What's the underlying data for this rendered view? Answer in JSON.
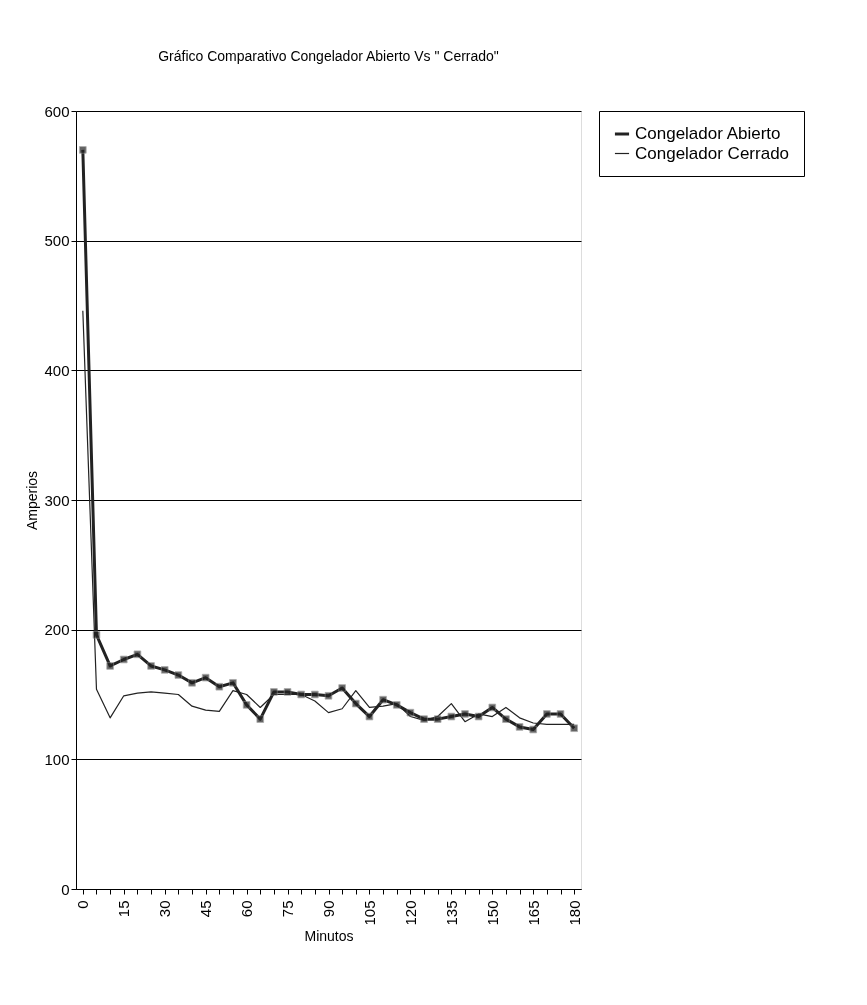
{
  "chart_data": {
    "type": "line",
    "title": "Gráfico Comparativo Congelador  Abierto Vs \" Cerrado\"",
    "xlabel": "Minutos",
    "ylabel": "Amperios",
    "categories": [
      "0",
      null,
      null,
      "15",
      null,
      null,
      "30",
      null,
      null,
      "45",
      null,
      null,
      "60",
      null,
      null,
      "75",
      null,
      null,
      "90",
      null,
      null,
      "105",
      null,
      null,
      "120",
      null,
      null,
      "135",
      null,
      null,
      "150",
      null,
      null,
      "165",
      null,
      null,
      "180"
    ],
    "series": [
      {
        "name": "Congelador Abierto",
        "color": "#222222",
        "marker": "square",
        "values": [
          570,
          196,
          172,
          177,
          181,
          172,
          169,
          165,
          159,
          163,
          156,
          159,
          142,
          131,
          152,
          152,
          150,
          150,
          149,
          155,
          143,
          133,
          146,
          142,
          136,
          131,
          131,
          133,
          135,
          133,
          140,
          131,
          125,
          123,
          135,
          135,
          124
        ]
      },
      {
        "name": "Congelador Cerrado",
        "color": "#222222",
        "marker": "none",
        "values": [
          446,
          154,
          132,
          149,
          151,
          152,
          151,
          150,
          141,
          138,
          137,
          153,
          150,
          140,
          150,
          150,
          150,
          145,
          136,
          139,
          153,
          140,
          141,
          143,
          133,
          130,
          133,
          143,
          129,
          135,
          133,
          140,
          132,
          128,
          127,
          127,
          127
        ]
      }
    ],
    "ylim": [
      0,
      600
    ],
    "yticks": [
      0,
      100,
      200,
      300,
      400,
      500,
      600
    ],
    "grid": "y",
    "legend": "right"
  }
}
